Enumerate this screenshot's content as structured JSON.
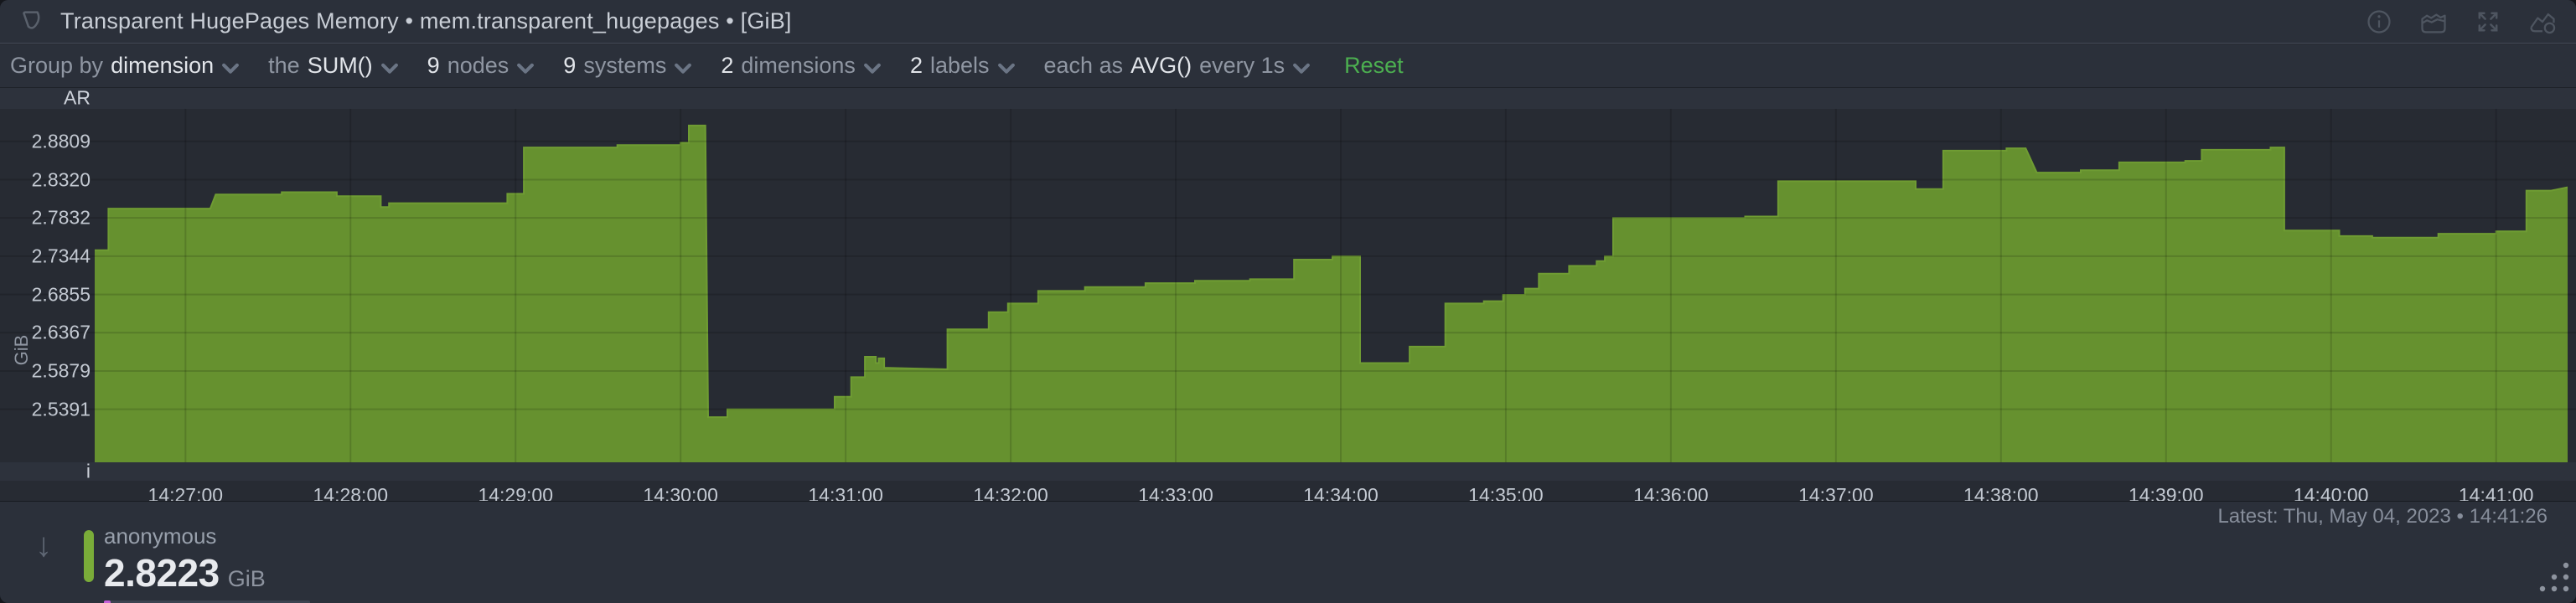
{
  "header": {
    "title": "Transparent HugePages Memory • mem.transparent_hugepages • [GiB]",
    "icons": [
      "info-circle",
      "area-chart-type",
      "fullscreen-expand",
      "add-to-dashboard"
    ]
  },
  "toolbar": {
    "items": [
      {
        "prefix": "Group by",
        "value": "dimension"
      },
      {
        "prefix": "the",
        "value": "SUM()"
      },
      {
        "value": "9",
        "suffix": "nodes"
      },
      {
        "value": "9",
        "suffix": "systems"
      },
      {
        "value": "2",
        "suffix": "dimensions"
      },
      {
        "value": "2",
        "suffix": "labels"
      },
      {
        "prefix": "each as",
        "value": "AVG()",
        "suffix": "every 1s"
      }
    ],
    "reset_label": "Reset"
  },
  "chart": {
    "unit_axis_label": "GiB",
    "anomaly_ribbon_label": "AR",
    "info_ribbon_label": "i",
    "latest_label": "Latest: Thu, May 04, 2023 • 14:41:26"
  },
  "legend": {
    "sort_icon": "arrow-down",
    "dimension_name": "anonymous",
    "value": "2.8223",
    "unit": "GiB"
  },
  "colors": {
    "area_fill": "#66912F",
    "area_line": "#6F9C33",
    "grid_on_area": "rgba(0,0,0,0.14)",
    "legend_swatch": "#7AAC39",
    "reset_green": "#4CAF50",
    "anomaly_dot": "#C45FD8",
    "plot_bg": "#272B33",
    "ribbon_bg": "#2D323C",
    "bar_bg": "#2B303A"
  },
  "chart_data": {
    "type": "area",
    "title": "mem.transparent_hugepages",
    "ylabel": "GiB",
    "dimension": "anonymous",
    "x_start": "14:26:27",
    "x_end": "14:41:26",
    "duration_s": 899,
    "ylim": [
      2.4714,
      2.9223
    ],
    "grid": true,
    "legend_position": "bottom-left",
    "y_ticks": [
      2.8809,
      2.832,
      2.7832,
      2.7344,
      2.6855,
      2.6367,
      2.5879,
      2.5391
    ],
    "x_ticks": [
      {
        "t": 33,
        "label": "14:27:00"
      },
      {
        "t": 93,
        "label": "14:28:00"
      },
      {
        "t": 153,
        "label": "14:29:00"
      },
      {
        "t": 213,
        "label": "14:30:00"
      },
      {
        "t": 273,
        "label": "14:31:00"
      },
      {
        "t": 333,
        "label": "14:32:00"
      },
      {
        "t": 393,
        "label": "14:33:00"
      },
      {
        "t": 453,
        "label": "14:34:00"
      },
      {
        "t": 513,
        "label": "14:35:00"
      },
      {
        "t": 573,
        "label": "14:36:00"
      },
      {
        "t": 633,
        "label": "14:37:00"
      },
      {
        "t": 693,
        "label": "14:38:00"
      },
      {
        "t": 753,
        "label": "14:39:00"
      },
      {
        "t": 813,
        "label": "14:40:00"
      },
      {
        "t": 873,
        "label": "14:41:00"
      }
    ],
    "points": [
      [
        0,
        2.742
      ],
      [
        5,
        2.742
      ],
      [
        5,
        2.795
      ],
      [
        42,
        2.795
      ],
      [
        44,
        2.813
      ],
      [
        68,
        2.813
      ],
      [
        68,
        2.816
      ],
      [
        88,
        2.816
      ],
      [
        88,
        2.811
      ],
      [
        104,
        2.811
      ],
      [
        104,
        2.797
      ],
      [
        107,
        2.797
      ],
      [
        107,
        2.802
      ],
      [
        150,
        2.802
      ],
      [
        150,
        2.814
      ],
      [
        156,
        2.814
      ],
      [
        156,
        2.873
      ],
      [
        190,
        2.873
      ],
      [
        190,
        2.876
      ],
      [
        213,
        2.876
      ],
      [
        213,
        2.879
      ],
      [
        216,
        2.879
      ],
      [
        216,
        2.901
      ],
      [
        222,
        2.901
      ],
      [
        223,
        2.529
      ],
      [
        230,
        2.529
      ],
      [
        230,
        2.539
      ],
      [
        269,
        2.539
      ],
      [
        269,
        2.555
      ],
      [
        275,
        2.555
      ],
      [
        275,
        2.58
      ],
      [
        280,
        2.58
      ],
      [
        280,
        2.606
      ],
      [
        284,
        2.606
      ],
      [
        284,
        2.598
      ],
      [
        285,
        2.598
      ],
      [
        285,
        2.604
      ],
      [
        287,
        2.604
      ],
      [
        287,
        2.592
      ],
      [
        310,
        2.59
      ],
      [
        310,
        2.641
      ],
      [
        325,
        2.641
      ],
      [
        325,
        2.663
      ],
      [
        332,
        2.663
      ],
      [
        332,
        2.674
      ],
      [
        343,
        2.674
      ],
      [
        343,
        2.69
      ],
      [
        360,
        2.69
      ],
      [
        360,
        2.695
      ],
      [
        382,
        2.695
      ],
      [
        382,
        2.7
      ],
      [
        400,
        2.7
      ],
      [
        400,
        2.703
      ],
      [
        420,
        2.703
      ],
      [
        420,
        2.705
      ],
      [
        436,
        2.705
      ],
      [
        436,
        2.73
      ],
      [
        450,
        2.73
      ],
      [
        450,
        2.734
      ],
      [
        460,
        2.734
      ],
      [
        460,
        2.598
      ],
      [
        478,
        2.598
      ],
      [
        478,
        2.619
      ],
      [
        491,
        2.619
      ],
      [
        491,
        2.674
      ],
      [
        505,
        2.674
      ],
      [
        505,
        2.677
      ],
      [
        512,
        2.677
      ],
      [
        512,
        2.685
      ],
      [
        520,
        2.685
      ],
      [
        520,
        2.693
      ],
      [
        525,
        2.693
      ],
      [
        525,
        2.712
      ],
      [
        536,
        2.712
      ],
      [
        536,
        2.722
      ],
      [
        546,
        2.722
      ],
      [
        546,
        2.728
      ],
      [
        549,
        2.728
      ],
      [
        549,
        2.734
      ],
      [
        552,
        2.734
      ],
      [
        552,
        2.783
      ],
      [
        600,
        2.783
      ],
      [
        600,
        2.785
      ],
      [
        612,
        2.785
      ],
      [
        612,
        2.83
      ],
      [
        662,
        2.83
      ],
      [
        662,
        2.82
      ],
      [
        672,
        2.82
      ],
      [
        672,
        2.869
      ],
      [
        695,
        2.869
      ],
      [
        695,
        2.872
      ],
      [
        702,
        2.872
      ],
      [
        706,
        2.841
      ],
      [
        722,
        2.841
      ],
      [
        722,
        2.844
      ],
      [
        736,
        2.844
      ],
      [
        736,
        2.854
      ],
      [
        760,
        2.854
      ],
      [
        760,
        2.856
      ],
      [
        766,
        2.856
      ],
      [
        766,
        2.87
      ],
      [
        791,
        2.87
      ],
      [
        791,
        2.873
      ],
      [
        796,
        2.873
      ],
      [
        796,
        2.767
      ],
      [
        816,
        2.767
      ],
      [
        816,
        2.76
      ],
      [
        828,
        2.76
      ],
      [
        828,
        2.758
      ],
      [
        852,
        2.758
      ],
      [
        852,
        2.763
      ],
      [
        873,
        2.763
      ],
      [
        873,
        2.766
      ],
      [
        884,
        2.766
      ],
      [
        884,
        2.818
      ],
      [
        893,
        2.818
      ],
      [
        899,
        2.8223
      ]
    ]
  }
}
